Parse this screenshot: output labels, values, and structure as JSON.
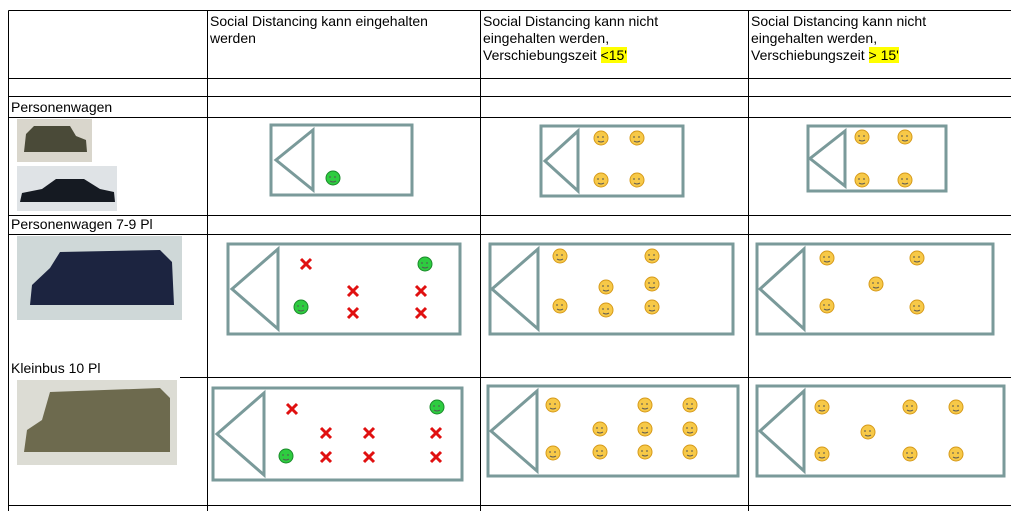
{
  "table": {
    "header": [
      {
        "text": "Social Distancing kann eingehalten werden"
      },
      {
        "text": "Social Distancing kann nicht eingehalten werden, Verschiebungszeit",
        "highlight": "<15'"
      },
      {
        "text": "Social Distancing kann nicht eingehalten werden, Verschiebungszeit",
        "highlight": "> 15'"
      }
    ],
    "rows": [
      "Personenwagen",
      "Personenwagen 7-9 Pl",
      "Kleinbus 10 Pl"
    ]
  }
}
